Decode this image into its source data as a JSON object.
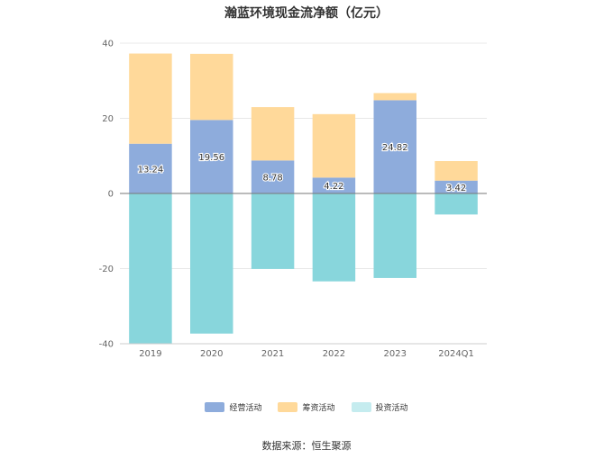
{
  "source_text": "数据来源：恒生聚源",
  "chart_data": {
    "type": "bar",
    "stacked": true,
    "title": "瀚蓝环境现金流净额（亿元）",
    "categories": [
      "2019",
      "2020",
      "2021",
      "2022",
      "2023",
      "2024Q1"
    ],
    "ylim": [
      -40,
      40
    ],
    "yticks": [
      40,
      20,
      0,
      -20,
      -40
    ],
    "grid": true,
    "legend_position": "bottom",
    "series": [
      {
        "name": "经营活动",
        "color": "#8eacdc",
        "values": [
          13.24,
          19.56,
          8.78,
          4.22,
          24.82,
          3.42
        ],
        "labels": [
          "13.24",
          "19.56",
          "8.78",
          "4.22",
          "24.82",
          "3.42"
        ]
      },
      {
        "name": "筹资活动",
        "color": "#ffd99a",
        "values": [
          24.0,
          17.6,
          14.2,
          16.9,
          1.9,
          5.2
        ]
      },
      {
        "name": "投资活动",
        "color": "#88d6dc",
        "values": [
          -40.0,
          -37.3,
          -20.1,
          -23.4,
          -22.5,
          -5.6
        ]
      }
    ]
  }
}
